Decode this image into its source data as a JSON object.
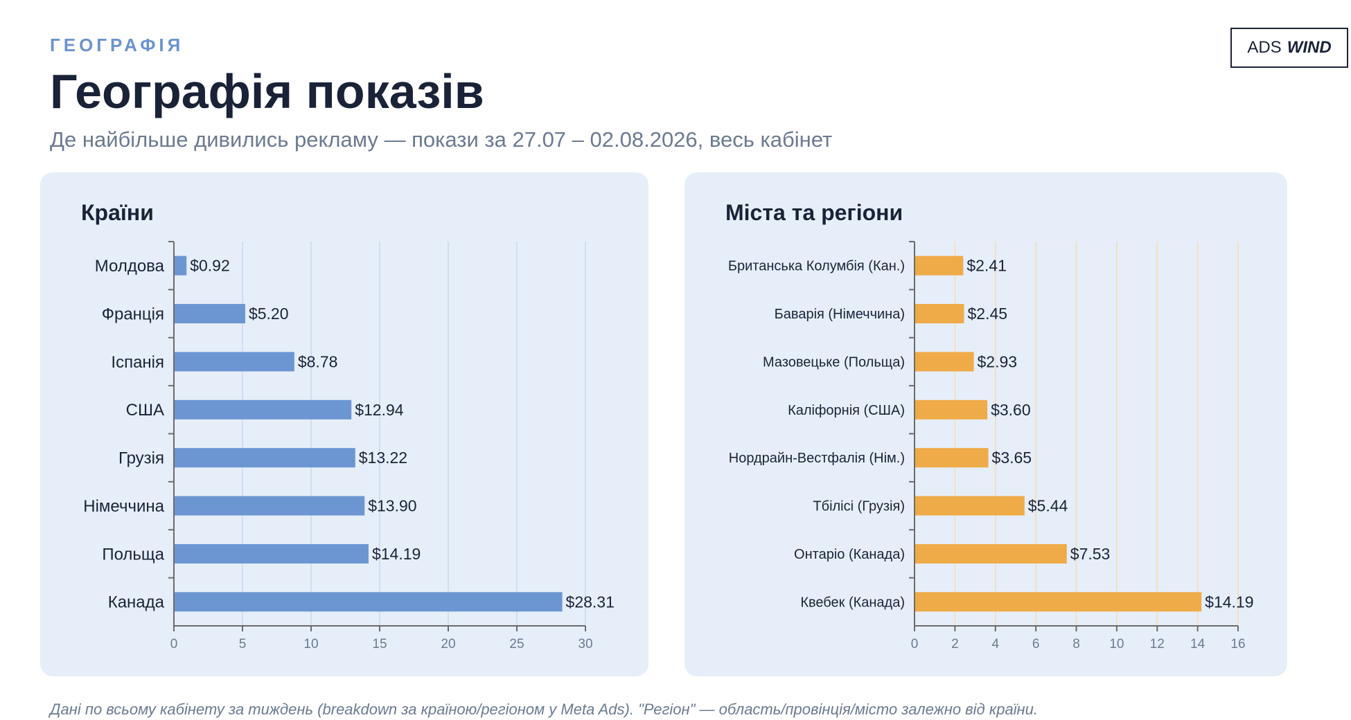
{
  "header": {
    "eyebrow": "ГЕОГРАФІЯ",
    "title": "Географія показів",
    "subtitle": "Де найбільше дивились рекламу — покази за 27.07 – 02.08.2026, весь кабінет",
    "logo_regular": "ADS",
    "logo_bold": "WIND"
  },
  "footnote": "Дані по всьому кабінету за тиждень (breakdown за країною/регіоном у Meta Ads). \"Регіон\" — область/провінція/місто залежно від країни.",
  "colors": {
    "countries_bar": "#6c96d2",
    "regions_bar": "#efab47",
    "countries_grid": "#c9d9f0",
    "regions_grid": "#f6dcb0",
    "axis": "#6b6b6b",
    "text": "#1a2238",
    "tick": "#6b7a90"
  },
  "chart_data": [
    {
      "type": "bar",
      "orientation": "horizontal",
      "title": "Країни",
      "categories": [
        "Молдова",
        "Франція",
        "Іспанія",
        "США",
        "Грузія",
        "Німеччина",
        "Польща",
        "Канада"
      ],
      "values": [
        0.92,
        5.2,
        8.78,
        12.94,
        13.22,
        13.9,
        14.19,
        28.31
      ],
      "value_labels": [
        "$0.92",
        "$5.20",
        "$8.78",
        "$12.94",
        "$13.22",
        "$13.90",
        "$14.19",
        "$28.31"
      ],
      "xlim": [
        0,
        30
      ],
      "xticks": [
        0,
        5,
        10,
        15,
        20,
        25,
        30
      ],
      "grid": true
    },
    {
      "type": "bar",
      "orientation": "horizontal",
      "title": "Міста та регіони",
      "categories": [
        "Британська Колумбія (Кан.)",
        "Баварія (Німеччина)",
        "Мазовецьке (Польща)",
        "Каліфорнія (США)",
        "Нордрайн-Вестфалія (Нім.)",
        "Тбілісі (Грузія)",
        "Онтаріо (Канада)",
        "Квебек (Канада)"
      ],
      "values": [
        2.41,
        2.45,
        2.93,
        3.6,
        3.65,
        5.44,
        7.53,
        14.19
      ],
      "value_labels": [
        "$2.41",
        "$2.45",
        "$2.93",
        "$3.60",
        "$3.65",
        "$5.44",
        "$7.53",
        "$14.19"
      ],
      "xlim": [
        0,
        16
      ],
      "xticks": [
        0,
        2,
        4,
        6,
        8,
        10,
        12,
        14,
        16
      ],
      "grid": true
    }
  ]
}
